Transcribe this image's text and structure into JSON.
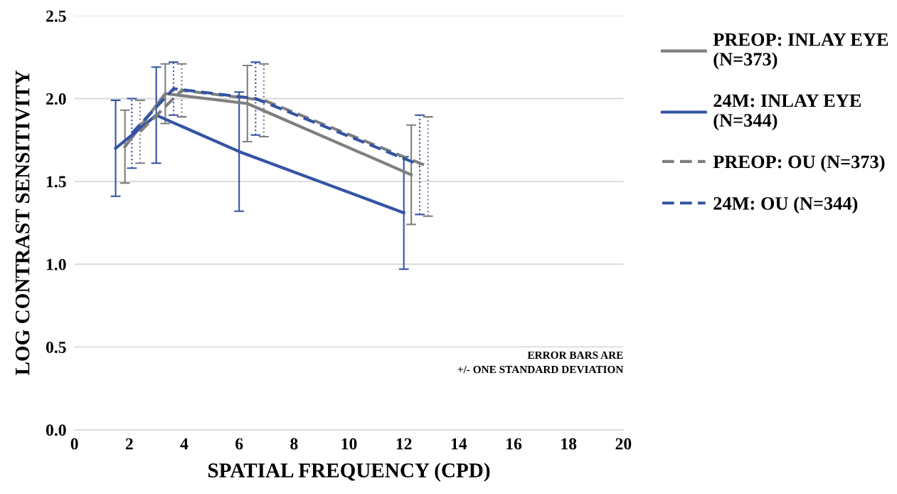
{
  "chart_data": {
    "type": "line",
    "xlabel": "SPATIAL FREQUENCY (CPD)",
    "ylabel": "LOG CONTRAST SENSITIVITY",
    "xlim": [
      0,
      20
    ],
    "xticks": [
      0,
      2,
      4,
      6,
      8,
      10,
      12,
      14,
      16,
      18,
      20
    ],
    "ylim": [
      0,
      2.5
    ],
    "yticks": [
      {
        "value": 0,
        "label": "0.0"
      },
      {
        "value": 0.5,
        "label": "0.5"
      },
      {
        "value": 1,
        "label": "1.0"
      },
      {
        "value": 1.5,
        "label": "1.5"
      },
      {
        "value": 2,
        "label": "2.0"
      },
      {
        "value": 2.5,
        "label": "2.5"
      }
    ],
    "grid": "y",
    "legend": "right",
    "marker": "none",
    "series": [
      {
        "name": "PREOP: INLAY EYE\n(N=373)",
        "color": "#7f7f7f",
        "line_style": "solid",
        "x": [
          1.84,
          3.31,
          6.3,
          12.27
        ],
        "values": [
          1.71,
          2.03,
          1.97,
          1.54
        ],
        "errors": [
          0.22,
          0.18,
          0.23,
          0.3
        ]
      },
      {
        "name": "24M: INLAY EYE\n(N=344)",
        "color": "#3353a4",
        "line_style": "solid",
        "x": [
          1.5,
          2.98,
          6.0,
          12.0
        ],
        "values": [
          1.7,
          1.9,
          1.68,
          1.31
        ],
        "errors": [
          0.29,
          0.29,
          0.36,
          0.34
        ]
      },
      {
        "name": "PREOP: OU (N=373)",
        "color": "#7f7f7f",
        "line_style": "dashed",
        "x": [
          2.39,
          3.91,
          6.9,
          12.88
        ],
        "values": [
          1.8,
          2.05,
          1.99,
          1.59
        ],
        "errors": [
          0.19,
          0.16,
          0.22,
          0.3
        ]
      },
      {
        "name": "24M: OU (N=344)",
        "color": "#3353a4",
        "line_style": "dashed",
        "x": [
          2.09,
          3.61,
          6.6,
          12.58
        ],
        "values": [
          1.79,
          2.06,
          2.0,
          1.6
        ],
        "errors": [
          0.21,
          0.16,
          0.22,
          0.3
        ]
      }
    ],
    "annotations": [
      "ERROR BARS ARE\n+/- ONE STANDARD DEVIATION"
    ]
  }
}
